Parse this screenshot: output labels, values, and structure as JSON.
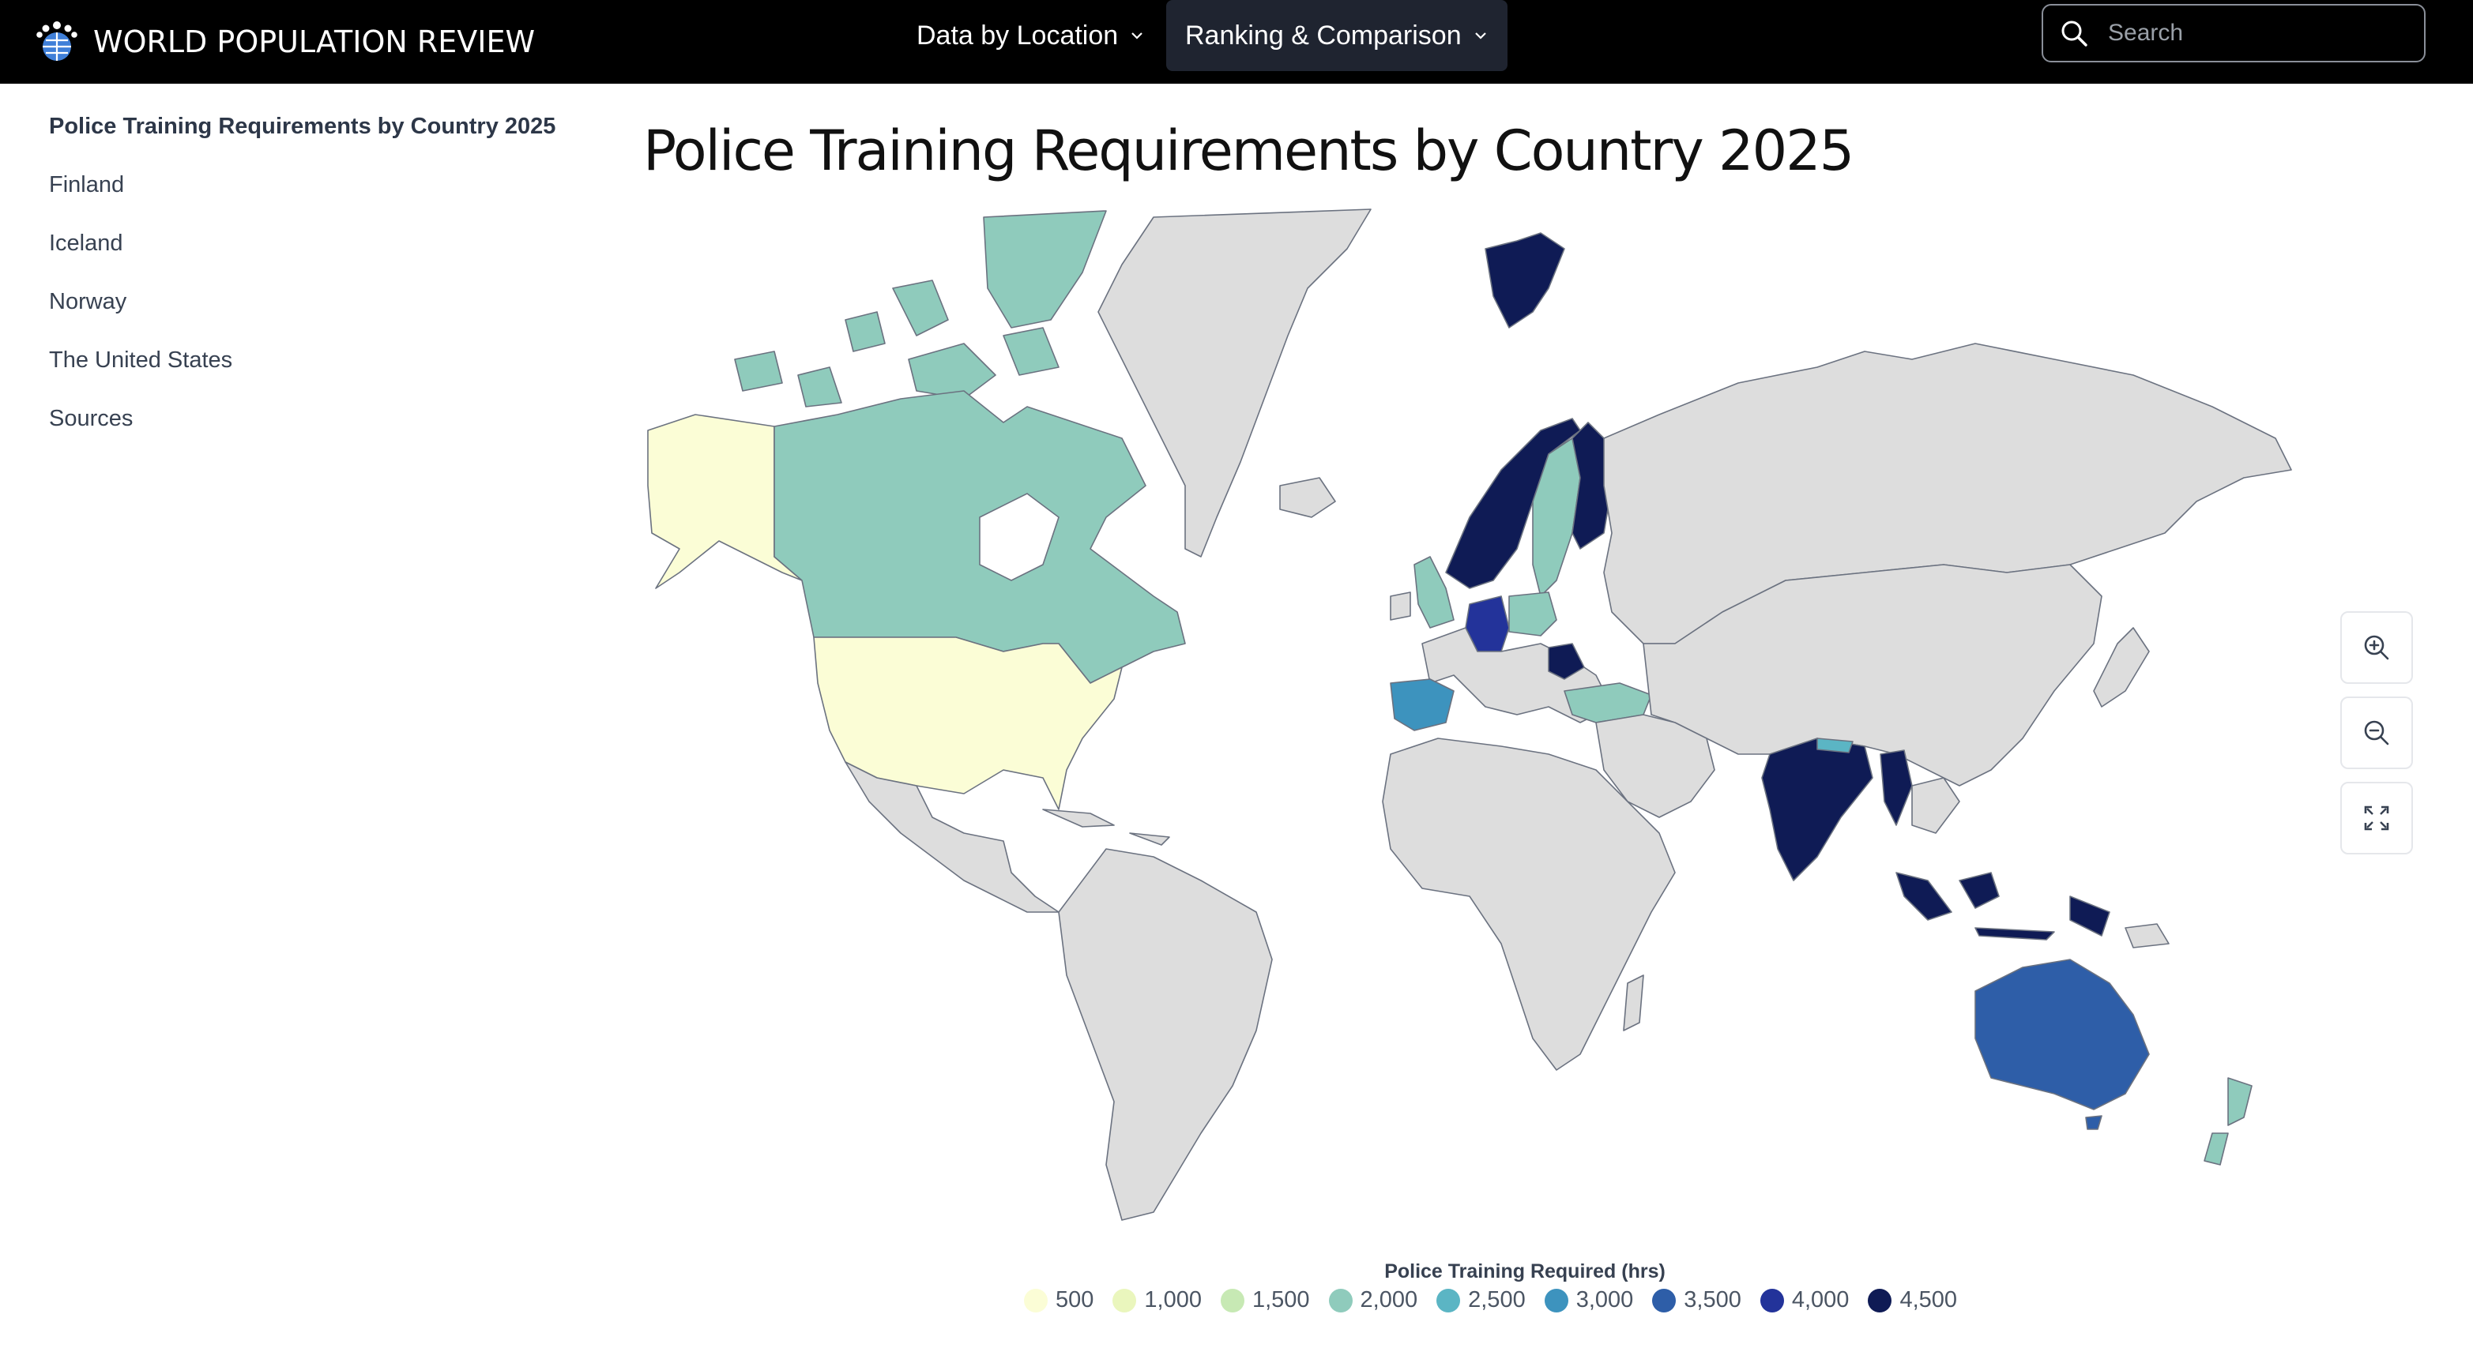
{
  "header": {
    "brand": "WORLD POPULATION REVIEW",
    "nav": [
      {
        "label": "Data by Location"
      },
      {
        "label": "Ranking & Comparison"
      }
    ],
    "search_placeholder": "Search"
  },
  "sidebar": {
    "items": [
      {
        "label": "Police Training Requirements by Country 2025"
      },
      {
        "label": "Finland"
      },
      {
        "label": "Iceland"
      },
      {
        "label": "Norway"
      },
      {
        "label": "The United States"
      },
      {
        "label": "Sources"
      }
    ]
  },
  "page": {
    "title": "Police Training Requirements by Country 2025"
  },
  "map_controls": [
    "zoom-in-icon",
    "zoom-out-icon",
    "fullscreen-icon"
  ],
  "legend": {
    "title": "Police Training Required (hrs)",
    "items": [
      {
        "label": "500",
        "color": "#fbfdd6"
      },
      {
        "label": "1,000",
        "color": "#eaf6bd"
      },
      {
        "label": "1,500",
        "color": "#c7e9b4"
      },
      {
        "label": "2,000",
        "color": "#8fcbbc"
      },
      {
        "label": "2,500",
        "color": "#5bb5c4"
      },
      {
        "label": "3,000",
        "color": "#3d93be"
      },
      {
        "label": "3,500",
        "color": "#2e5ea8"
      },
      {
        "label": "4,000",
        "color": "#23339a"
      },
      {
        "label": "4,500",
        "color": "#0f1b55"
      }
    ]
  },
  "colors": {
    "no_data": "#dddddd",
    "topbar": "#000000"
  }
}
